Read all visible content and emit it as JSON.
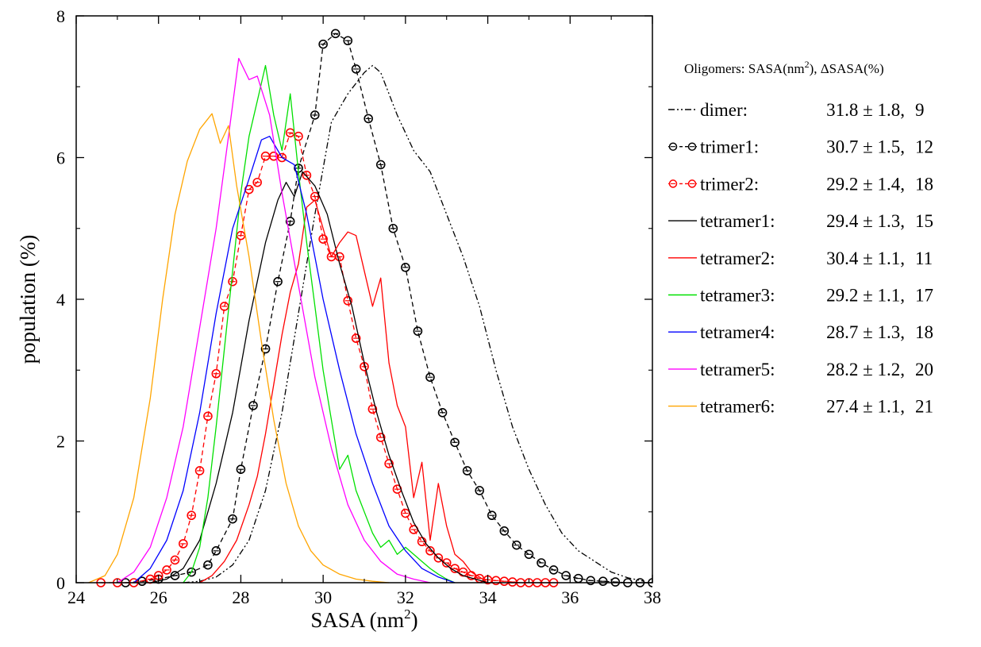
{
  "chart_data": {
    "type": "line",
    "xlabel": "SASA (nm",
    "xlabel_sup": "2",
    "xlabel_close": ")",
    "ylabel": "population (%)",
    "xlim": [
      24,
      38
    ],
    "ylim": [
      0,
      8
    ],
    "xticks": [
      "24",
      "26",
      "28",
      "30",
      "32",
      "34",
      "36",
      "38"
    ],
    "yticks": [
      "0",
      "2",
      "4",
      "6",
      "8"
    ],
    "grid": false,
    "legend_position": "right",
    "legend_title": {
      "a": "Oligomers: SASA(nm",
      "sup": "2",
      "b": "), ΔSASA(%)"
    },
    "series": [
      {
        "name": "dimer:",
        "value": "31.8 ± 1.8,",
        "pct": "9",
        "color": "#000000",
        "dash": "8,3,2,3,2,3",
        "marker": "none",
        "x": [
          26.6,
          27.0,
          27.4,
          27.8,
          28.2,
          28.6,
          29.0,
          29.4,
          29.8,
          30.2,
          30.6,
          31.0,
          31.2,
          31.4,
          31.8,
          32.2,
          32.6,
          33.0,
          33.4,
          33.8,
          34.2,
          34.6,
          35.0,
          35.4,
          35.8,
          36.2,
          36.6,
          37.0,
          37.4,
          37.8
        ],
        "y": [
          0.0,
          0.02,
          0.08,
          0.25,
          0.6,
          1.3,
          2.4,
          3.8,
          5.2,
          6.5,
          6.9,
          7.2,
          7.3,
          7.2,
          6.6,
          6.1,
          5.8,
          5.2,
          4.6,
          3.9,
          3.0,
          2.2,
          1.6,
          1.1,
          0.7,
          0.45,
          0.3,
          0.15,
          0.07,
          0.02
        ]
      },
      {
        "name": "trimer1:",
        "value": "30.7 ± 1.5,",
        "pct": "12",
        "color": "#000000",
        "dash": "6,4",
        "marker": "circle",
        "x": [
          25.2,
          25.6,
          26.0,
          26.4,
          26.8,
          27.2,
          27.4,
          27.8,
          28.0,
          28.3,
          28.6,
          28.9,
          29.2,
          29.4,
          29.8,
          30.0,
          30.3,
          30.6,
          30.8,
          31.1,
          31.4,
          31.7,
          32.0,
          32.3,
          32.6,
          32.9,
          33.2,
          33.5,
          33.8,
          34.1,
          34.4,
          34.7,
          35.0,
          35.3,
          35.6,
          35.9,
          36.2,
          36.5,
          36.8,
          37.1,
          37.4,
          37.7,
          38.0
        ],
        "y": [
          0.0,
          0.02,
          0.05,
          0.1,
          0.15,
          0.25,
          0.45,
          0.9,
          1.6,
          2.5,
          3.3,
          4.25,
          5.1,
          5.85,
          6.6,
          7.6,
          7.75,
          7.65,
          7.25,
          6.55,
          5.9,
          5.0,
          4.45,
          3.55,
          2.9,
          2.4,
          1.98,
          1.58,
          1.3,
          0.95,
          0.73,
          0.53,
          0.4,
          0.28,
          0.18,
          0.1,
          0.06,
          0.03,
          0.02,
          0.01,
          0.0,
          0.0,
          0.0
        ]
      },
      {
        "name": "trimer2:",
        "value": "29.2 ± 1.4,",
        "pct": "18",
        "color": "#ff0000",
        "dash": "6,4",
        "marker": "circle",
        "x": [
          24.6,
          25.0,
          25.4,
          25.8,
          26.0,
          26.2,
          26.4,
          26.6,
          26.8,
          27.0,
          27.2,
          27.4,
          27.6,
          27.8,
          28.0,
          28.2,
          28.4,
          28.6,
          28.8,
          29.0,
          29.2,
          29.4,
          29.6,
          29.8,
          30.0,
          30.2,
          30.4,
          30.6,
          30.8,
          31.0,
          31.2,
          31.4,
          31.6,
          31.8,
          32.0,
          32.2,
          32.4,
          32.6,
          32.8,
          33.0,
          33.2,
          33.4,
          33.6,
          33.8,
          34.0,
          34.2,
          34.4,
          34.6,
          34.8,
          35.0,
          35.2,
          35.4,
          35.6
        ],
        "y": [
          0.0,
          0.0,
          0.0,
          0.05,
          0.1,
          0.18,
          0.32,
          0.55,
          0.95,
          1.58,
          2.35,
          2.95,
          3.9,
          4.25,
          4.9,
          5.55,
          5.65,
          6.02,
          6.02,
          6.0,
          6.35,
          6.3,
          5.75,
          5.45,
          4.85,
          4.6,
          4.6,
          3.98,
          3.45,
          3.05,
          2.45,
          2.05,
          1.68,
          1.32,
          0.98,
          0.75,
          0.58,
          0.45,
          0.35,
          0.28,
          0.2,
          0.15,
          0.1,
          0.06,
          0.04,
          0.03,
          0.02,
          0.01,
          0.0,
          0.0,
          0.0,
          0.0,
          0.0
        ]
      },
      {
        "name": "tetramer1:",
        "value": "29.4 ± 1.3,",
        "pct": "15",
        "color": "#000000",
        "dash": "",
        "marker": "none",
        "x": [
          25.8,
          26.2,
          26.6,
          27.0,
          27.4,
          27.8,
          28.2,
          28.6,
          28.9,
          29.1,
          29.3,
          29.5,
          29.8,
          30.1,
          30.4,
          30.7,
          31.0,
          31.3,
          31.6,
          31.9,
          32.2,
          32.5,
          32.8,
          33.1,
          33.4,
          33.7,
          34.0
        ],
        "y": [
          0.0,
          0.05,
          0.2,
          0.6,
          1.4,
          2.4,
          3.7,
          4.8,
          5.4,
          5.65,
          5.45,
          5.8,
          5.6,
          5.2,
          4.5,
          3.9,
          3.1,
          2.4,
          1.8,
          1.3,
          0.85,
          0.55,
          0.35,
          0.2,
          0.1,
          0.05,
          0.0
        ]
      },
      {
        "name": "tetramer2:",
        "value": "30.4 ± 1.1,",
        "pct": "11",
        "color": "#ff0000",
        "dash": "",
        "marker": "none",
        "x": [
          27.0,
          27.3,
          27.6,
          27.9,
          28.2,
          28.4,
          28.6,
          28.8,
          29.0,
          29.2,
          29.4,
          29.6,
          29.8,
          30.0,
          30.2,
          30.4,
          30.6,
          30.8,
          31.0,
          31.2,
          31.4,
          31.6,
          31.8,
          32.0,
          32.2,
          32.4,
          32.6,
          32.8,
          33.0,
          33.2,
          33.4,
          33.6,
          33.8,
          34.0
        ],
        "y": [
          0.0,
          0.1,
          0.3,
          0.6,
          1.1,
          1.5,
          2.1,
          2.8,
          3.5,
          4.1,
          4.5,
          5.3,
          5.4,
          5.0,
          4.6,
          4.8,
          4.95,
          4.9,
          4.4,
          3.9,
          4.3,
          3.1,
          2.5,
          2.2,
          1.2,
          1.7,
          0.6,
          1.4,
          0.8,
          0.4,
          0.3,
          0.15,
          0.08,
          0.0
        ]
      },
      {
        "name": "tetramer3:",
        "value": "29.2 ± 1.1,",
        "pct": "17",
        "color": "#00e000",
        "dash": "",
        "marker": "none",
        "x": [
          26.6,
          26.8,
          27.0,
          27.2,
          27.4,
          27.6,
          27.8,
          28.0,
          28.2,
          28.4,
          28.6,
          28.8,
          29.0,
          29.2,
          29.4,
          29.6,
          29.8,
          30.0,
          30.2,
          30.4,
          30.6,
          30.8,
          31.0,
          31.2,
          31.4,
          31.6,
          31.8,
          32.0,
          32.2,
          32.4,
          32.6,
          32.8,
          33.0,
          33.2
        ],
        "y": [
          0.0,
          0.15,
          0.5,
          1.2,
          2.2,
          3.3,
          4.4,
          5.5,
          6.3,
          6.8,
          7.3,
          6.6,
          6.1,
          6.9,
          5.8,
          4.8,
          3.9,
          3.0,
          2.3,
          1.6,
          1.8,
          1.3,
          1.0,
          0.7,
          0.5,
          0.6,
          0.4,
          0.5,
          0.4,
          0.3,
          0.2,
          0.12,
          0.05,
          0.0
        ]
      },
      {
        "name": "tetramer4:",
        "value": "28.7 ± 1.3,",
        "pct": "18",
        "color": "#0000ff",
        "dash": "",
        "marker": "none",
        "x": [
          25.4,
          25.8,
          26.2,
          26.6,
          27.0,
          27.4,
          27.8,
          28.2,
          28.5,
          28.7,
          29.0,
          29.3,
          29.6,
          30.0,
          30.4,
          30.8,
          31.2,
          31.6,
          32.0,
          32.4,
          32.8,
          33.2
        ],
        "y": [
          0.0,
          0.2,
          0.6,
          1.3,
          2.4,
          3.8,
          5.0,
          5.7,
          6.25,
          6.3,
          6.0,
          5.9,
          5.2,
          4.0,
          3.0,
          2.1,
          1.4,
          0.8,
          0.45,
          0.2,
          0.08,
          0.0
        ]
      },
      {
        "name": "tetramer5:",
        "value": "28.2 ± 1.2,",
        "pct": "20",
        "color": "#ff00ff",
        "dash": "",
        "marker": "none",
        "x": [
          25.0,
          25.4,
          25.8,
          26.2,
          26.6,
          27.0,
          27.4,
          27.7,
          27.95,
          28.2,
          28.4,
          28.7,
          29.0,
          29.4,
          29.8,
          30.2,
          30.6,
          31.0,
          31.4,
          31.8,
          32.2,
          32.6
        ],
        "y": [
          0.0,
          0.15,
          0.5,
          1.2,
          2.2,
          3.6,
          5.0,
          6.3,
          7.4,
          7.1,
          7.15,
          6.6,
          5.5,
          4.2,
          2.9,
          1.9,
          1.1,
          0.6,
          0.3,
          0.12,
          0.05,
          0.0
        ]
      },
      {
        "name": "tetramer6:",
        "value": "27.4 ± 1.1,",
        "pct": "21",
        "color": "#ffa500",
        "dash": "",
        "marker": "none",
        "x": [
          24.3,
          24.7,
          25.0,
          25.4,
          25.8,
          26.1,
          26.4,
          26.7,
          27.0,
          27.3,
          27.5,
          27.7,
          27.9,
          28.2,
          28.5,
          28.8,
          29.1,
          29.4,
          29.7,
          30.0,
          30.4,
          30.8,
          31.2,
          31.6
        ],
        "y": [
          0.0,
          0.1,
          0.4,
          1.2,
          2.6,
          4.0,
          5.2,
          5.95,
          6.4,
          6.62,
          6.2,
          6.45,
          5.6,
          4.6,
          3.4,
          2.3,
          1.4,
          0.8,
          0.45,
          0.25,
          0.12,
          0.05,
          0.02,
          0.0
        ]
      }
    ]
  }
}
